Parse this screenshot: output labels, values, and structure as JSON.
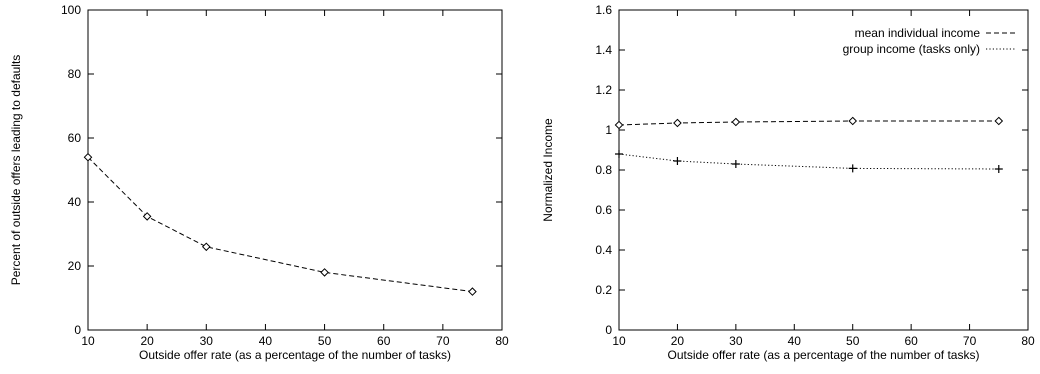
{
  "chart_data": [
    {
      "type": "line",
      "xlabel": "Outside offer rate (as a percentage of the number of tasks)",
      "ylabel": "Percent of outside offers leading to defaults",
      "xlim": [
        10,
        80
      ],
      "ylim": [
        0,
        100
      ],
      "xticks": [
        10,
        20,
        30,
        40,
        50,
        60,
        70,
        80
      ],
      "yticks": [
        0,
        20,
        40,
        60,
        80,
        100
      ],
      "grid": false,
      "series": [
        {
          "x": [
            10,
            20,
            30,
            50,
            75
          ],
          "values": [
            54,
            35.5,
            26,
            18,
            12
          ],
          "marker": "diamond",
          "line_style": "dashed"
        }
      ]
    },
    {
      "type": "line",
      "xlabel": "Outside offer rate (as a percentage of the number of tasks)",
      "ylabel": "Normalized Income",
      "xlim": [
        10,
        80
      ],
      "ylim": [
        0,
        1.6
      ],
      "xticks": [
        10,
        20,
        30,
        40,
        50,
        60,
        70,
        80
      ],
      "yticks": [
        0,
        0.2,
        0.4,
        0.6,
        0.8,
        1,
        1.2,
        1.4,
        1.6
      ],
      "grid": false,
      "legend": "top-right",
      "series": [
        {
          "name": "mean individual income",
          "x": [
            10,
            20,
            30,
            50,
            75
          ],
          "values": [
            1.025,
            1.035,
            1.04,
            1.045,
            1.045
          ],
          "marker": "diamond",
          "line_style": "dashed"
        },
        {
          "name": "group income (tasks only)",
          "x": [
            10,
            20,
            30,
            50,
            75
          ],
          "values": [
            0.88,
            0.845,
            0.83,
            0.808,
            0.805
          ],
          "marker": "plus",
          "line_style": "dotted"
        }
      ]
    }
  ]
}
